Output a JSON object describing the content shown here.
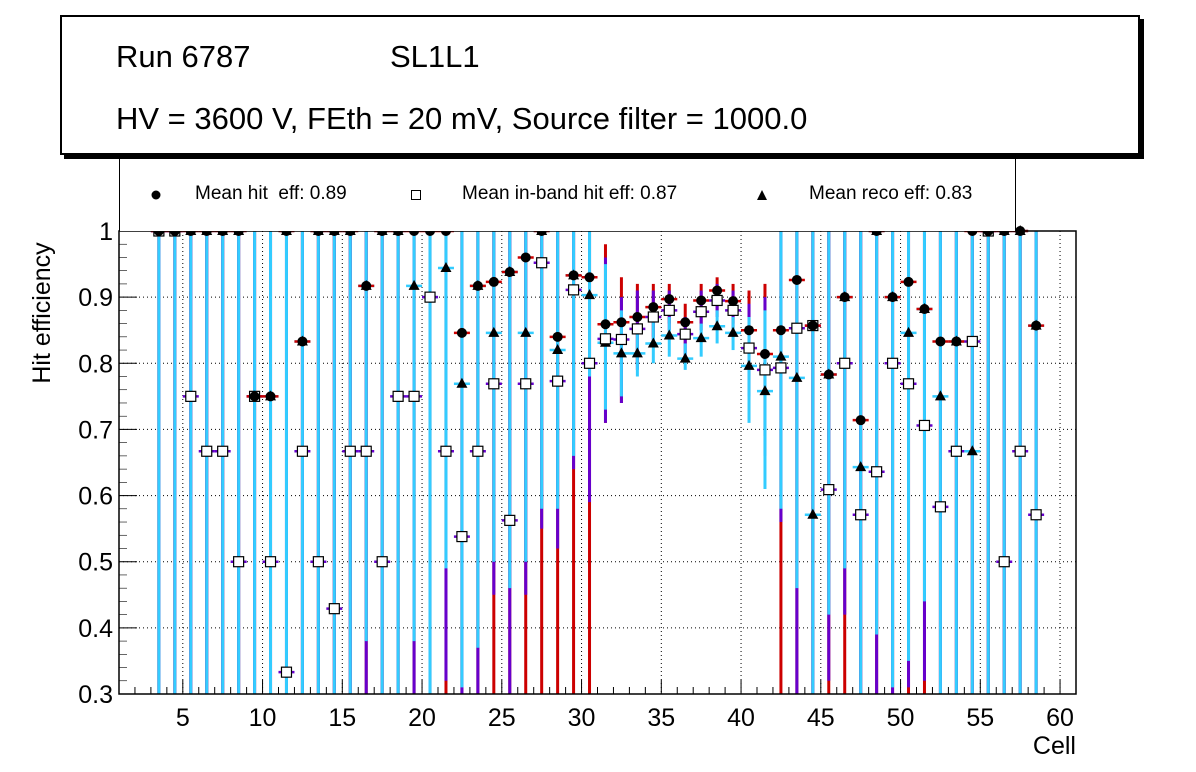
{
  "title": {
    "run": "Run 6787",
    "layer": "SL1L1",
    "conditions": "HV = 3600 V, FEth = 20 mV, Source filter = 1000.0"
  },
  "legend": [
    {
      "marker": "filled-circle",
      "label": "Mean hit  eff: 0.89"
    },
    {
      "marker": "open-square",
      "label": "Mean in-band hit eff: 0.87"
    },
    {
      "marker": "filled-triangle",
      "label": "Mean reco eff: 0.83"
    }
  ],
  "colors": {
    "hit_err": "#cc0000",
    "inband_err": "#6600cc",
    "reco_err": "#33ccff",
    "marker": "#000000"
  },
  "chart_data": {
    "type": "scatter",
    "title": "",
    "xlabel": "Cell",
    "ylabel": "Hit efficiency",
    "xlim": [
      1,
      61
    ],
    "ylim": [
      0.3,
      1.0
    ],
    "xticks": [
      5,
      10,
      15,
      20,
      25,
      30,
      35,
      40,
      45,
      50,
      55,
      60
    ],
    "yticks": [
      0.3,
      0.4,
      0.5,
      0.6,
      0.7,
      0.8,
      0.9,
      1
    ],
    "ytick_labels": [
      "0.3",
      "0.4",
      "0.5",
      "0.6",
      "0.7",
      "0.8",
      "0.9",
      "1"
    ],
    "grid": true,
    "legend_position": "top",
    "series_names": [
      "Mean hit  eff",
      "Mean in-band hit eff",
      "Mean reco eff"
    ],
    "points": [
      {
        "cell": 3,
        "hit": 1.0,
        "inband": 1.0,
        "reco": 1.0,
        "hit_err": [
          0.3,
          1.0
        ],
        "inband_err": [
          0.3,
          1.0
        ],
        "reco_err": [
          0.3,
          1.0
        ]
      },
      {
        "cell": 4,
        "hit": 1.0,
        "inband": 1.0,
        "reco": 1.0,
        "hit_err": [
          0.3,
          1.0
        ],
        "inband_err": [
          0.3,
          1.0
        ],
        "reco_err": [
          0.3,
          1.0
        ]
      },
      {
        "cell": 5,
        "hit": 1.0,
        "inband": 0.75,
        "reco": 1.0,
        "hit_err": [
          0.3,
          1.0
        ],
        "inband_err": [
          0.3,
          1.0
        ],
        "reco_err": [
          0.3,
          1.0
        ]
      },
      {
        "cell": 6,
        "hit": 1.0,
        "inband": 0.667,
        "reco": 1.0,
        "hit_err": [
          0.3,
          1.0
        ],
        "inband_err": [
          0.3,
          1.0
        ],
        "reco_err": [
          0.3,
          1.0
        ]
      },
      {
        "cell": 7,
        "hit": 1.0,
        "inband": 0.667,
        "reco": 1.0,
        "hit_err": [
          0.3,
          1.0
        ],
        "inband_err": [
          0.3,
          1.0
        ],
        "reco_err": [
          0.3,
          1.0
        ]
      },
      {
        "cell": 8,
        "hit": 1.0,
        "inband": 0.5,
        "reco": 1.0,
        "hit_err": [
          0.3,
          1.0
        ],
        "inband_err": [
          0.3,
          1.0
        ],
        "reco_err": [
          0.3,
          1.0
        ]
      },
      {
        "cell": 9,
        "hit": 0.75,
        "inband": 0.75,
        "reco": 0.75,
        "hit_err": [
          0.3,
          1.0
        ],
        "inband_err": [
          0.3,
          1.0
        ],
        "reco_err": [
          0.3,
          1.0
        ]
      },
      {
        "cell": 10,
        "hit": 0.75,
        "inband": 0.5,
        "reco": 0.75,
        "hit_err": [
          0.3,
          1.0
        ],
        "inband_err": [
          0.3,
          1.0
        ],
        "reco_err": [
          0.3,
          1.0
        ]
      },
      {
        "cell": 11,
        "hit": 1.0,
        "inband": 0.333,
        "reco": 1.0,
        "hit_err": [
          0.3,
          1.0
        ],
        "inband_err": [
          0.3,
          1.0
        ],
        "reco_err": [
          0.3,
          1.0
        ]
      },
      {
        "cell": 12,
        "hit": 0.833,
        "inband": 0.667,
        "reco": 0.833,
        "hit_err": [
          0.3,
          1.0
        ],
        "inband_err": [
          0.3,
          1.0
        ],
        "reco_err": [
          0.3,
          1.0
        ]
      },
      {
        "cell": 13,
        "hit": 1.0,
        "inband": 0.5,
        "reco": 1.0,
        "hit_err": [
          0.3,
          1.0
        ],
        "inband_err": [
          0.3,
          1.0
        ],
        "reco_err": [
          0.3,
          1.0
        ]
      },
      {
        "cell": 14,
        "hit": 1.0,
        "inband": 0.429,
        "reco": 1.0,
        "hit_err": [
          0.3,
          1.0
        ],
        "inband_err": [
          0.3,
          1.0
        ],
        "reco_err": [
          0.3,
          1.0
        ]
      },
      {
        "cell": 15,
        "hit": 1.0,
        "inband": 0.667,
        "reco": 1.0,
        "hit_err": [
          0.3,
          1.0
        ],
        "inband_err": [
          0.3,
          1.0
        ],
        "reco_err": [
          0.3,
          1.0
        ]
      },
      {
        "cell": 16,
        "hit": 0.917,
        "inband": 0.667,
        "reco": 0.917,
        "hit_err": [
          0.3,
          1.0
        ],
        "inband_err": [
          0.3,
          1.0
        ],
        "reco_err": [
          0.38,
          1.0
        ]
      },
      {
        "cell": 17,
        "hit": 1.0,
        "inband": 0.5,
        "reco": 1.0,
        "hit_err": [
          0.3,
          1.0
        ],
        "inband_err": [
          0.3,
          1.0
        ],
        "reco_err": [
          0.3,
          1.0
        ]
      },
      {
        "cell": 18,
        "hit": 1.0,
        "inband": 0.75,
        "reco": 1.0,
        "hit_err": [
          0.3,
          1.0
        ],
        "inband_err": [
          0.3,
          1.0
        ],
        "reco_err": [
          0.3,
          1.0
        ]
      },
      {
        "cell": 19,
        "hit": 1.0,
        "inband": 0.75,
        "reco": 0.917,
        "hit_err": [
          0.3,
          1.0
        ],
        "inband_err": [
          0.3,
          1.0
        ],
        "reco_err": [
          0.38,
          1.0
        ]
      },
      {
        "cell": 20,
        "hit": 1.0,
        "inband": 0.9,
        "reco": 0.9,
        "hit_err": [
          0.3,
          1.0
        ],
        "inband_err": [
          0.3,
          1.0
        ],
        "reco_err": [
          0.3,
          1.0
        ]
      },
      {
        "cell": 21,
        "hit": 1.0,
        "inband": 0.667,
        "reco": 0.944,
        "hit_err": [
          0.3,
          1.0
        ],
        "inband_err": [
          0.32,
          1.0
        ],
        "reco_err": [
          0.49,
          1.0
        ]
      },
      {
        "cell": 22,
        "hit": 0.846,
        "inband": 0.538,
        "reco": 0.769,
        "hit_err": [
          0.3,
          1.0
        ],
        "inband_err": [
          0.3,
          1.0
        ],
        "reco_err": [
          0.31,
          1.0
        ]
      },
      {
        "cell": 23,
        "hit": 0.917,
        "inband": 0.667,
        "reco": 0.917,
        "hit_err": [
          0.3,
          1.0
        ],
        "inband_err": [
          0.3,
          1.0
        ],
        "reco_err": [
          0.37,
          1.0
        ]
      },
      {
        "cell": 24,
        "hit": 0.923,
        "inband": 0.769,
        "reco": 0.846,
        "hit_err": [
          0.3,
          1.0
        ],
        "inband_err": [
          0.45,
          1.0
        ],
        "reco_err": [
          0.5,
          1.0
        ]
      },
      {
        "cell": 25,
        "hit": 0.938,
        "inband": 0.5625,
        "reco": 0.938,
        "hit_err": [
          0.3,
          1.0
        ],
        "inband_err": [
          0.3,
          1.0
        ],
        "reco_err": [
          0.46,
          1.0
        ]
      },
      {
        "cell": 26,
        "hit": 0.96,
        "inband": 0.769,
        "reco": 0.846,
        "hit_err": [
          0.3,
          1.0
        ],
        "inband_err": [
          0.45,
          1.0
        ],
        "reco_err": [
          0.5,
          1.0
        ]
      },
      {
        "cell": 27,
        "hit": 1.0,
        "inband": 0.952,
        "reco": 1.0,
        "hit_err": [
          0.3,
          1.0
        ],
        "inband_err": [
          0.55,
          1.0
        ],
        "reco_err": [
          0.58,
          1.0
        ]
      },
      {
        "cell": 28,
        "hit": 0.84,
        "inband": 0.773,
        "reco": 0.82,
        "hit_err": [
          0.3,
          1.0
        ],
        "inband_err": [
          0.52,
          1.0
        ],
        "reco_err": [
          0.58,
          1.0
        ]
      },
      {
        "cell": 29,
        "hit": 0.933,
        "inband": 0.911,
        "reco": 0.933,
        "hit_err": [
          0.3,
          1.0
        ],
        "inband_err": [
          0.64,
          1.0
        ],
        "reco_err": [
          0.66,
          1.0
        ]
      },
      {
        "cell": 30,
        "hit": 0.93,
        "inband": 0.8,
        "reco": 0.903,
        "hit_err": [
          0.3,
          1.0
        ],
        "inband_err": [
          0.59,
          1.0
        ],
        "reco_err": [
          0.78,
          1.0
        ]
      },
      {
        "cell": 31,
        "hit": 0.859,
        "inband": 0.837,
        "reco": 0.831,
        "hit_err": [
          0.71,
          0.98
        ],
        "inband_err": [
          0.71,
          0.96
        ],
        "reco_err": [
          0.73,
          0.95
        ]
      },
      {
        "cell": 32,
        "hit": 0.862,
        "inband": 0.836,
        "reco": 0.815,
        "hit_err": [
          0.74,
          0.93
        ],
        "inband_err": [
          0.74,
          0.9
        ],
        "reco_err": [
          0.75,
          0.88
        ]
      },
      {
        "cell": 33,
        "hit": 0.87,
        "inband": 0.852,
        "reco": 0.815,
        "hit_err": [
          0.8,
          0.92
        ],
        "inband_err": [
          0.79,
          0.91
        ],
        "reco_err": [
          0.78,
          0.86
        ]
      },
      {
        "cell": 34,
        "hit": 0.885,
        "inband": 0.87,
        "reco": 0.83,
        "hit_err": [
          0.84,
          0.92
        ],
        "inband_err": [
          0.83,
          0.91
        ],
        "reco_err": [
          0.8,
          0.87
        ]
      },
      {
        "cell": 35,
        "hit": 0.897,
        "inband": 0.88,
        "reco": 0.842,
        "hit_err": [
          0.86,
          0.92
        ],
        "inband_err": [
          0.85,
          0.91
        ],
        "reco_err": [
          0.81,
          0.87
        ]
      },
      {
        "cell": 36,
        "hit": 0.862,
        "inband": 0.844,
        "reco": 0.807,
        "hit_err": [
          0.83,
          0.89
        ],
        "inband_err": [
          0.81,
          0.87
        ],
        "reco_err": [
          0.79,
          0.83
        ]
      },
      {
        "cell": 37,
        "hit": 0.895,
        "inband": 0.878,
        "reco": 0.838,
        "hit_err": [
          0.86,
          0.92
        ],
        "inband_err": [
          0.85,
          0.91
        ],
        "reco_err": [
          0.81,
          0.86
        ]
      },
      {
        "cell": 38,
        "hit": 0.91,
        "inband": 0.895,
        "reco": 0.856,
        "hit_err": [
          0.88,
          0.93
        ],
        "inband_err": [
          0.87,
          0.92
        ],
        "reco_err": [
          0.83,
          0.88
        ]
      },
      {
        "cell": 39,
        "hit": 0.894,
        "inband": 0.88,
        "reco": 0.846,
        "hit_err": [
          0.86,
          0.92
        ],
        "inband_err": [
          0.85,
          0.91
        ],
        "reco_err": [
          0.82,
          0.87
        ]
      },
      {
        "cell": 40,
        "hit": 0.85,
        "inband": 0.823,
        "reco": 0.796,
        "hit_err": [
          0.78,
          0.91
        ],
        "inband_err": [
          0.75,
          0.89
        ],
        "reco_err": [
          0.71,
          0.87
        ]
      },
      {
        "cell": 41,
        "hit": 0.814,
        "inband": 0.79,
        "reco": 0.758,
        "hit_err": [
          0.69,
          0.92
        ],
        "inband_err": [
          0.66,
          0.9
        ],
        "reco_err": [
          0.61,
          0.88
        ]
      },
      {
        "cell": 42,
        "hit": 0.85,
        "inband": 0.793,
        "reco": 0.81,
        "hit_err": [
          0.3,
          1.0
        ],
        "inband_err": [
          0.56,
          1.0
        ],
        "reco_err": [
          0.58,
          1.0
        ]
      },
      {
        "cell": 43,
        "hit": 0.926,
        "inband": 0.853,
        "reco": 0.778,
        "hit_err": [
          0.3,
          1.0
        ],
        "inband_err": [
          0.3,
          1.0
        ],
        "reco_err": [
          0.46,
          1.0
        ]
      },
      {
        "cell": 44,
        "hit": 0.857,
        "inband": 0.857,
        "reco": 0.571,
        "hit_err": [
          0.3,
          1.0
        ],
        "inband_err": [
          0.3,
          1.0
        ],
        "reco_err": [
          0.3,
          1.0
        ]
      },
      {
        "cell": 45,
        "hit": 0.783,
        "inband": 0.609,
        "reco": 0.783,
        "hit_err": [
          0.3,
          1.0
        ],
        "inband_err": [
          0.32,
          1.0
        ],
        "reco_err": [
          0.42,
          1.0
        ]
      },
      {
        "cell": 46,
        "hit": 0.9,
        "inband": 0.8,
        "reco": 0.9,
        "hit_err": [
          0.3,
          1.0
        ],
        "inband_err": [
          0.42,
          1.0
        ],
        "reco_err": [
          0.49,
          1.0
        ]
      },
      {
        "cell": 47,
        "hit": 0.714,
        "inband": 0.571,
        "reco": 0.643,
        "hit_err": [
          0.3,
          1.0
        ],
        "inband_err": [
          0.3,
          1.0
        ],
        "reco_err": [
          0.3,
          1.0
        ]
      },
      {
        "cell": 48,
        "hit": 1.0,
        "inband": 0.636,
        "reco": 1.0,
        "hit_err": [
          0.3,
          1.0
        ],
        "inband_err": [
          0.3,
          1.0
        ],
        "reco_err": [
          0.39,
          1.0
        ]
      },
      {
        "cell": 49,
        "hit": 0.9,
        "inband": 0.8,
        "reco": 0.9,
        "hit_err": [
          0.3,
          1.0
        ],
        "inband_err": [
          0.3,
          1.0
        ],
        "reco_err": [
          0.31,
          1.0
        ]
      },
      {
        "cell": 50,
        "hit": 0.923,
        "inband": 0.769,
        "reco": 0.846,
        "hit_err": [
          0.3,
          1.0
        ],
        "inband_err": [
          0.31,
          1.0
        ],
        "reco_err": [
          0.35,
          1.0
        ]
      },
      {
        "cell": 51,
        "hit": 0.882,
        "inband": 0.706,
        "reco": 0.882,
        "hit_err": [
          0.3,
          1.0
        ],
        "inband_err": [
          0.32,
          1.0
        ],
        "reco_err": [
          0.44,
          1.0
        ]
      },
      {
        "cell": 52,
        "hit": 0.833,
        "inband": 0.583,
        "reco": 0.75,
        "hit_err": [
          0.3,
          1.0
        ],
        "inband_err": [
          0.3,
          1.0
        ],
        "reco_err": [
          0.3,
          1.0
        ]
      },
      {
        "cell": 53,
        "hit": 0.833,
        "inband": 0.667,
        "reco": 0.833,
        "hit_err": [
          0.3,
          1.0
        ],
        "inband_err": [
          0.3,
          1.0
        ],
        "reco_err": [
          0.3,
          1.0
        ]
      },
      {
        "cell": 54,
        "hit": 1.0,
        "inband": 0.833,
        "reco": 0.667,
        "hit_err": [
          0.3,
          1.0
        ],
        "inband_err": [
          0.3,
          1.0
        ],
        "reco_err": [
          0.3,
          1.0
        ]
      },
      {
        "cell": 55,
        "hit": 1.0,
        "inband": 1.0,
        "reco": 1.0,
        "hit_err": [
          0.3,
          1.0
        ],
        "inband_err": [
          0.3,
          1.0
        ],
        "reco_err": [
          0.3,
          1.0
        ]
      },
      {
        "cell": 56,
        "hit": 1.0,
        "inband": 0.5,
        "reco": 1.0,
        "hit_err": [
          0.3,
          1.0
        ],
        "inband_err": [
          0.3,
          1.0
        ],
        "reco_err": [
          0.3,
          1.0
        ]
      },
      {
        "cell": 57,
        "hit": 1.0,
        "inband": 0.667,
        "reco": 1.0,
        "hit_err": [
          0.3,
          1.0
        ],
        "inband_err": [
          0.3,
          1.0
        ],
        "reco_err": [
          0.3,
          1.0
        ]
      },
      {
        "cell": 58,
        "hit": 0.857,
        "inband": 0.571,
        "reco": 0.857,
        "hit_err": [
          0.3,
          1.0
        ],
        "inband_err": [
          0.3,
          1.0
        ],
        "reco_err": [
          0.3,
          1.0
        ]
      }
    ]
  }
}
